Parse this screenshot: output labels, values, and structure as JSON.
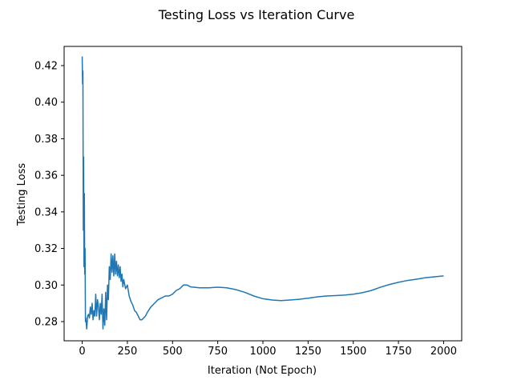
{
  "chart_data": {
    "type": "line",
    "title": "Testing Loss vs Iteration Curve",
    "xlabel": "Iteration (Not Epoch)",
    "ylabel": "Testing Loss",
    "xlim": [
      -100,
      2100
    ],
    "ylim": [
      0.2695,
      0.4305
    ],
    "xticks": [
      0,
      250,
      500,
      750,
      1000,
      1250,
      1500,
      1750,
      2000
    ],
    "xtick_labels": [
      "0",
      "250",
      "500",
      "750",
      "1000",
      "1250",
      "1500",
      "1750",
      "2000"
    ],
    "yticks": [
      0.28,
      0.3,
      0.32,
      0.34,
      0.36,
      0.38,
      0.4,
      0.42
    ],
    "ytick_labels": [
      "0.28",
      "0.30",
      "0.32",
      "0.34",
      "0.36",
      "0.38",
      "0.40",
      "0.42"
    ],
    "grid": false,
    "legend": "none",
    "series": [
      {
        "color": "#1f77b4",
        "x": [
          0,
          2,
          4,
          6,
          8,
          10,
          12,
          14,
          16,
          18,
          20,
          25,
          30,
          35,
          40,
          45,
          50,
          55,
          60,
          65,
          70,
          75,
          80,
          85,
          90,
          95,
          100,
          105,
          110,
          115,
          120,
          125,
          130,
          135,
          140,
          145,
          150,
          155,
          160,
          165,
          170,
          175,
          180,
          185,
          190,
          195,
          200,
          205,
          210,
          215,
          220,
          225,
          230,
          240,
          250,
          260,
          270,
          280,
          290,
          300,
          310,
          320,
          330,
          340,
          350,
          360,
          380,
          400,
          420,
          440,
          460,
          480,
          500,
          520,
          540,
          560,
          580,
          600,
          650,
          700,
          750,
          800,
          850,
          900,
          950,
          1000,
          1050,
          1100,
          1150,
          1200,
          1250,
          1300,
          1350,
          1400,
          1450,
          1500,
          1550,
          1600,
          1650,
          1700,
          1750,
          1800,
          1850,
          1900,
          1950,
          2000
        ],
        "y": [
          0.425,
          0.41,
          0.417,
          0.33,
          0.37,
          0.31,
          0.35,
          0.306,
          0.32,
          0.28,
          0.282,
          0.276,
          0.283,
          0.284,
          0.282,
          0.288,
          0.284,
          0.29,
          0.281,
          0.286,
          0.283,
          0.295,
          0.283,
          0.292,
          0.288,
          0.281,
          0.29,
          0.284,
          0.295,
          0.276,
          0.287,
          0.278,
          0.296,
          0.281,
          0.3,
          0.292,
          0.31,
          0.303,
          0.317,
          0.307,
          0.316,
          0.305,
          0.317,
          0.306,
          0.313,
          0.305,
          0.311,
          0.304,
          0.31,
          0.302,
          0.306,
          0.299,
          0.303,
          0.298,
          0.3,
          0.294,
          0.291,
          0.289,
          0.286,
          0.285,
          0.283,
          0.281,
          0.281,
          0.282,
          0.283,
          0.285,
          0.288,
          0.29,
          0.292,
          0.293,
          0.294,
          0.294,
          0.295,
          0.297,
          0.298,
          0.3,
          0.3,
          0.299,
          0.2985,
          0.2985,
          0.2988,
          0.2985,
          0.2975,
          0.296,
          0.294,
          0.2925,
          0.2918,
          0.2915,
          0.2918,
          0.2922,
          0.2928,
          0.2935,
          0.294,
          0.2942,
          0.2945,
          0.295,
          0.2958,
          0.297,
          0.2988,
          0.3003,
          0.3015,
          0.3025,
          0.3032,
          0.304,
          0.3045,
          0.305
        ]
      }
    ]
  }
}
